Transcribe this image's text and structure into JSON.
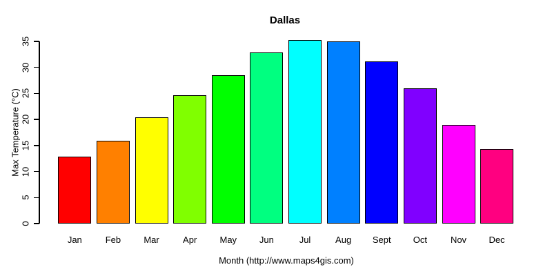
{
  "chart_data": {
    "type": "bar",
    "title": "Dallas",
    "xlabel": "Month (http://www.maps4gis.com)",
    "ylabel": "Max Temperature (°C)",
    "categories": [
      "Jan",
      "Feb",
      "Mar",
      "Apr",
      "May",
      "Jun",
      "Jul",
      "Aug",
      "Sept",
      "Oct",
      "Nov",
      "Dec"
    ],
    "values": [
      12.8,
      15.9,
      20.4,
      24.6,
      28.5,
      32.9,
      35.2,
      35.0,
      31.1,
      25.9,
      19.0,
      14.3
    ],
    "bar_colors": [
      "#FF0000",
      "#FF8000",
      "#FFFF00",
      "#80FF00",
      "#00FF00",
      "#00FF80",
      "#00FFFF",
      "#0080FF",
      "#0000FF",
      "#8000FF",
      "#FF00FF",
      "#FF0080"
    ],
    "yticks": [
      0,
      5,
      10,
      15,
      20,
      25,
      30,
      35
    ],
    "ylim": [
      0,
      35
    ],
    "grid": false,
    "legend_position": "none",
    "bar_border_color": "#000000",
    "axis_color": "#000000",
    "text_color": "#000000",
    "background_color": "#FFFFFF"
  }
}
